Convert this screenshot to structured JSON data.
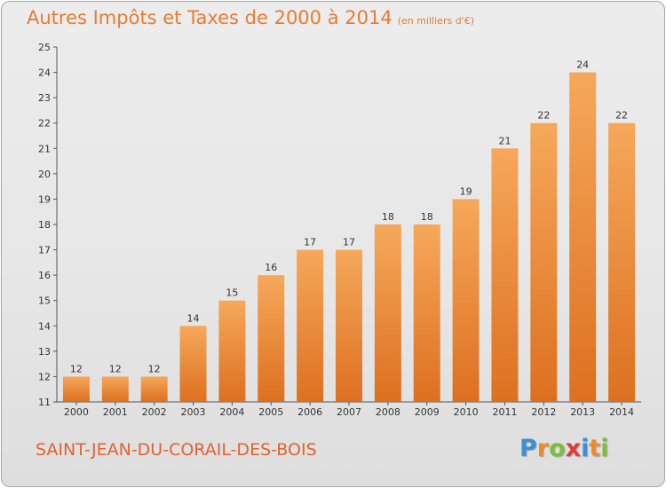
{
  "title": "Autres Impôts et Taxes de 2000 à 2014",
  "unit": "(en milliers d'€)",
  "location": "SAINT-JEAN-DU-CORAIL-DES-BOIS",
  "logo": {
    "text": "Proxiti",
    "letters": [
      {
        "ch": "P",
        "color": "#3b8fd6"
      },
      {
        "ch": "r",
        "color": "#ef8a2a"
      },
      {
        "ch": "o",
        "color": "#7cbf3a"
      },
      {
        "ch": "x",
        "color": "#e03c3c"
      },
      {
        "ch": "i",
        "color": "#3b8fd6"
      },
      {
        "ch": "t",
        "color": "#ef8a2a"
      },
      {
        "ch": "i",
        "color": "#7cbf3a"
      }
    ]
  },
  "colors": {
    "bar_top": "#f6a85a",
    "bar_bottom": "#dd7020",
    "title": "#e47d33",
    "location": "#e0632f"
  },
  "chart_data": {
    "type": "bar",
    "title": "Autres Impôts et Taxes de 2000 à 2014",
    "subtitle": "(en milliers d'€)",
    "xlabel": "",
    "ylabel": "",
    "categories": [
      "2000",
      "2001",
      "2002",
      "2003",
      "2004",
      "2005",
      "2006",
      "2007",
      "2008",
      "2009",
      "2010",
      "2011",
      "2012",
      "2013",
      "2014"
    ],
    "values": [
      12,
      12,
      12,
      14,
      15,
      16,
      17,
      17,
      18,
      18,
      19,
      21,
      22,
      24,
      22
    ],
    "ylim": [
      11,
      25
    ],
    "yticks": [
      11,
      12,
      13,
      14,
      15,
      16,
      17,
      18,
      19,
      20,
      21,
      22,
      23,
      24,
      25
    ],
    "grid": false,
    "legend": "none"
  }
}
